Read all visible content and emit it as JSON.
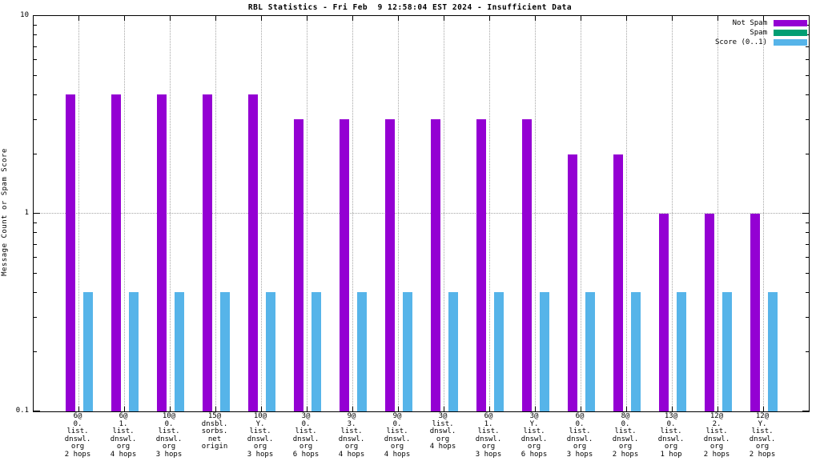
{
  "title": "RBL Statistics - Fri Feb  9 12:58:04 EST 2024 - Insufficient Data",
  "ylabel": "Message Count or Spam Score",
  "legend": [
    {
      "label": "Not Spam",
      "color": "#9400d3"
    },
    {
      "label": "Spam",
      "color": "#009e73"
    },
    {
      "label": "Score (0..1)",
      "color": "#56b4e9"
    }
  ],
  "chart_data": {
    "type": "bar",
    "title": "RBL Statistics - Fri Feb  9 12:58:04 EST 2024 - Insufficient Data",
    "xlabel": "",
    "ylabel": "Message Count or Spam Score",
    "yscale": "log",
    "ylim": [
      0.1,
      10
    ],
    "yticks": [
      {
        "label": "10",
        "value": 10
      },
      {
        "label": "1",
        "value": 1
      },
      {
        "label": "0.1",
        "value": 0.1
      }
    ],
    "grid": true,
    "legend_position": "top-right",
    "categories": [
      [
        "6@",
        "0.",
        "list.",
        "dnswl.",
        "org",
        "2 hops"
      ],
      [
        "6@",
        "1.",
        "list.",
        "dnswl.",
        "org",
        "4 hops"
      ],
      [
        "10@",
        "0.",
        "list.",
        "dnswl.",
        "org",
        "3 hops"
      ],
      [
        "15@",
        "dnsbl.",
        "sorbs.",
        "net",
        "origin"
      ],
      [
        "10@",
        "Y.",
        "list.",
        "dnswl.",
        "org",
        "3 hops"
      ],
      [
        "3@",
        "0.",
        "list.",
        "dnswl.",
        "org",
        "6 hops"
      ],
      [
        "9@",
        "3.",
        "list.",
        "dnswl.",
        "org",
        "4 hops"
      ],
      [
        "9@",
        "0.",
        "list.",
        "dnswl.",
        "org",
        "4 hops"
      ],
      [
        "3@",
        "list.",
        "dnswl.",
        "org",
        "4 hops"
      ],
      [
        "6@",
        "1.",
        "list.",
        "dnswl.",
        "org",
        "3 hops"
      ],
      [
        "3@",
        "Y.",
        "list.",
        "dnswl.",
        "org",
        "6 hops"
      ],
      [
        "6@",
        "0.",
        "list.",
        "dnswl.",
        "org",
        "3 hops"
      ],
      [
        "8@",
        "0.",
        "list.",
        "dnswl.",
        "org",
        "2 hops"
      ],
      [
        "13@",
        "0.",
        "list.",
        "dnswl.",
        "org",
        "1 hop"
      ],
      [
        "12@",
        "2.",
        "list.",
        "dnswl.",
        "org",
        "2 hops"
      ],
      [
        "12@",
        "Y.",
        "list.",
        "dnswl.",
        "org",
        "2 hops"
      ]
    ],
    "series": [
      {
        "name": "Not Spam",
        "color": "#9400d3",
        "values": [
          4,
          4,
          4,
          4,
          4,
          3,
          3,
          3,
          3,
          3,
          3,
          2,
          2,
          1,
          1,
          1
        ]
      },
      {
        "name": "Spam",
        "color": "#009e73",
        "values": [
          0,
          0,
          0,
          0,
          0,
          0,
          0,
          0,
          0,
          0,
          0,
          0,
          0,
          0,
          0,
          0
        ]
      },
      {
        "name": "Score (0..1)",
        "color": "#56b4e9",
        "values": [
          0.4,
          0.4,
          0.4,
          0.4,
          0.4,
          0.4,
          0.4,
          0.4,
          0.4,
          0.4,
          0.4,
          0.4,
          0.4,
          0.4,
          0.4,
          0.4
        ]
      }
    ]
  }
}
